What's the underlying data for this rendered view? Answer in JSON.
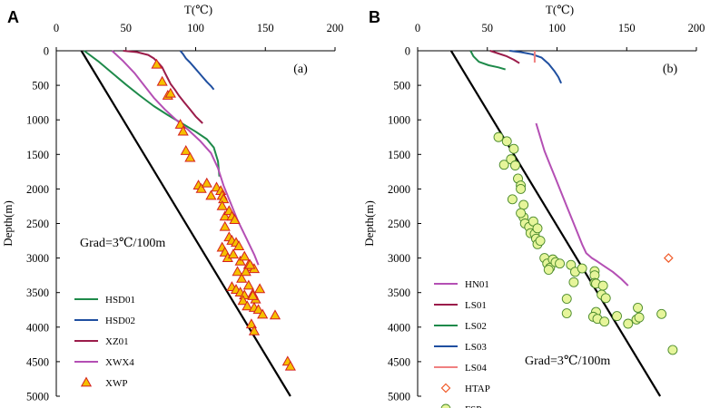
{
  "chart_data": [
    {
      "type": "line",
      "panel_letter": "A",
      "panel_tag": "(a)",
      "title": "",
      "xlabel": "T(℃)",
      "ylabel": "Depth(m)",
      "xlim": [
        0,
        200
      ],
      "ylim": [
        5000,
        0
      ],
      "xticks": [
        "0",
        "50",
        "100",
        "150",
        "200"
      ],
      "yticks": [
        "0",
        "500",
        "1000",
        "1500",
        "2000",
        "2500",
        "3000",
        "3500",
        "4000",
        "4500",
        "5000"
      ],
      "xtick_values": [
        0,
        50,
        100,
        150,
        200
      ],
      "ytick_values": [
        0,
        500,
        1000,
        1500,
        2000,
        2500,
        3000,
        3500,
        4000,
        4500,
        5000
      ],
      "annotation": "Grad=3℃/100m",
      "gradient_line": {
        "name": "Grad=3℃/100m",
        "x": [
          18,
          168
        ],
        "y": [
          0,
          5000
        ]
      },
      "series": [
        {
          "name": "HSD01",
          "kind": "line",
          "color": "#1e8a4a",
          "x": [
            20,
            30,
            40,
            50,
            60,
            70,
            80,
            90,
            100,
            108,
            113,
            116,
            117
          ],
          "y": [
            0,
            150,
            320,
            490,
            650,
            800,
            930,
            1050,
            1170,
            1280,
            1400,
            1600,
            1820
          ]
        },
        {
          "name": "HSD02",
          "kind": "line",
          "color": "#1f4fa0",
          "x": [
            89,
            91,
            93,
            96,
            99,
            102,
            105,
            108,
            111,
            113
          ],
          "y": [
            0,
            50,
            110,
            170,
            240,
            310,
            380,
            450,
            510,
            560
          ]
        },
        {
          "name": "XZ01",
          "kind": "line",
          "color": "#9b1c4a",
          "x": [
            48,
            58,
            66,
            70,
            73,
            76,
            78,
            80,
            82,
            85,
            88,
            92,
            96,
            100,
            105
          ],
          "y": [
            0,
            20,
            60,
            110,
            170,
            240,
            320,
            400,
            480,
            560,
            650,
            750,
            850,
            950,
            1050
          ]
        },
        {
          "name": "XWX4",
          "kind": "line",
          "color": "#b44fb4",
          "x": [
            40,
            48,
            56,
            63,
            70,
            78,
            86,
            95,
            103,
            111,
            116,
            120,
            125,
            130,
            136,
            142,
            145
          ],
          "y": [
            0,
            150,
            320,
            500,
            680,
            850,
            1000,
            1150,
            1300,
            1480,
            1700,
            1950,
            2200,
            2450,
            2700,
            2950,
            3100
          ]
        },
        {
          "name": "XWP",
          "kind": "marker",
          "marker": "triangle",
          "color": "#f5c000",
          "edge": "#d42020",
          "x": [
            72,
            76,
            80,
            82,
            89,
            91,
            93,
            96,
            102,
            104,
            108,
            111,
            115,
            118,
            119,
            120,
            119,
            121,
            124,
            126,
            128,
            121,
            124,
            126,
            129,
            131,
            119,
            121,
            123,
            127,
            132,
            135,
            138,
            140,
            142,
            130,
            133,
            136,
            139,
            126,
            129,
            132,
            135,
            138,
            141,
            143,
            146,
            134,
            137,
            142,
            145,
            148,
            141,
            157,
            140,
            142,
            166,
            168
          ],
          "y": [
            200,
            450,
            650,
            620,
            1070,
            1170,
            1450,
            1550,
            1950,
            2000,
            1920,
            2100,
            1980,
            2030,
            2100,
            2150,
            2250,
            2400,
            2320,
            2400,
            2450,
            2550,
            2700,
            2750,
            2780,
            2830,
            2850,
            2920,
            3000,
            2950,
            3050,
            2980,
            3100,
            3130,
            3160,
            3200,
            3300,
            3200,
            3100,
            3420,
            3460,
            3500,
            3540,
            3400,
            3520,
            3600,
            3450,
            3620,
            3700,
            3720,
            3750,
            3820,
            3550,
            3830,
            3960,
            4060,
            4500,
            4570
          ]
        }
      ]
    },
    {
      "type": "scatter",
      "panel_letter": "B",
      "panel_tag": "(b)",
      "title": "",
      "xlabel": "T(℃)",
      "ylabel": "Depth(m)",
      "xlim": [
        0,
        200
      ],
      "ylim": [
        5000,
        0
      ],
      "xticks": [
        "0",
        "50",
        "100",
        "150",
        "200"
      ],
      "yticks": [
        "0",
        "500",
        "1000",
        "1500",
        "2000",
        "2500",
        "3000",
        "3500",
        "4000",
        "4500",
        "5000"
      ],
      "xtick_values": [
        0,
        50,
        100,
        150,
        200
      ],
      "ytick_values": [
        0,
        500,
        1000,
        1500,
        2000,
        2500,
        3000,
        3500,
        4000,
        4500,
        5000
      ],
      "annotation": "Grad=3℃/100m",
      "gradient_line": {
        "name": "Grad=3℃/100m",
        "x": [
          24,
          174
        ],
        "y": [
          0,
          5000
        ]
      },
      "series": [
        {
          "name": "HN01",
          "kind": "line",
          "color": "#b44fb4",
          "x": [
            85,
            88,
            91,
            95,
            99,
            103,
            107,
            111,
            115,
            118,
            121,
            125,
            129,
            134,
            140,
            146,
            151
          ],
          "y": [
            1050,
            1250,
            1450,
            1650,
            1850,
            2050,
            2250,
            2450,
            2650,
            2800,
            2930,
            3000,
            3050,
            3120,
            3200,
            3300,
            3400
          ]
        },
        {
          "name": "LS01",
          "kind": "line",
          "color": "#9b1c4a",
          "x": [
            52,
            58,
            64,
            69,
            73
          ],
          "y": [
            0,
            40,
            80,
            130,
            180
          ]
        },
        {
          "name": "LS02",
          "kind": "line",
          "color": "#1e8a4a",
          "x": [
            38,
            40,
            44,
            51,
            58,
            63
          ],
          "y": [
            0,
            80,
            160,
            210,
            240,
            270
          ]
        },
        {
          "name": "LS03",
          "kind": "line",
          "color": "#1f4fa0",
          "x": [
            66,
            74,
            82,
            89,
            94,
            98,
            101,
            103
          ],
          "y": [
            0,
            20,
            50,
            100,
            190,
            290,
            380,
            470
          ]
        },
        {
          "name": "LS04",
          "kind": "line",
          "color": "#f08080",
          "x": [
            84,
            84
          ],
          "y": [
            0,
            170
          ]
        },
        {
          "name": "HTAP",
          "kind": "marker",
          "marker": "diamond",
          "color": "#ffffff",
          "edge": "#f05a28",
          "x": [
            180
          ],
          "y": [
            3000
          ]
        },
        {
          "name": "FSP",
          "kind": "marker",
          "marker": "circle",
          "color": "#e6f59a",
          "edge": "#4a8a2a",
          "x": [
            58,
            64,
            69,
            62,
            67,
            70,
            72,
            74,
            74,
            68,
            76,
            76,
            74,
            77,
            80,
            81,
            83,
            84,
            86,
            85,
            86,
            88,
            91,
            93,
            95,
            94,
            97,
            99,
            102,
            110,
            113,
            107,
            112,
            118,
            127,
            127,
            127,
            128,
            133,
            132,
            135,
            128,
            126,
            107,
            129,
            134,
            143,
            151,
            158,
            157,
            175,
            159,
            183
          ],
          "y": [
            1250,
            1310,
            1420,
            1650,
            1570,
            1660,
            1850,
            1950,
            2000,
            2150,
            2230,
            2410,
            2350,
            2500,
            2550,
            2640,
            2470,
            2650,
            2570,
            2720,
            2800,
            2750,
            3000,
            3080,
            3140,
            3170,
            3020,
            3060,
            3080,
            3100,
            3200,
            3590,
            3350,
            3150,
            3190,
            3250,
            3360,
            3370,
            3400,
            3530,
            3580,
            3780,
            3850,
            3800,
            3880,
            3920,
            3840,
            3950,
            3720,
            3890,
            3810,
            3860,
            4330
          ]
        }
      ]
    }
  ]
}
